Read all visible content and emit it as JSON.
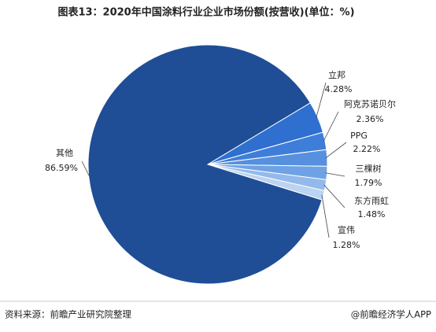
{
  "chart_data": {
    "type": "pie",
    "title": "图表13：2020年中国涂料行业企业市场份额(按营收)(单位：%)",
    "categories": [
      "立邦",
      "阿克苏诺贝尔",
      "PPG",
      "三棵树",
      "东方雨虹",
      "宣伟",
      "其他"
    ],
    "values": [
      4.28,
      2.36,
      2.22,
      1.79,
      1.48,
      1.28,
      86.59
    ],
    "value_labels": [
      "4.28%",
      "2.36%",
      "2.22%",
      "1.79%",
      "1.48%",
      "1.28%",
      "86.59%"
    ],
    "colors": [
      "#2e6fd0",
      "#3f7ed8",
      "#5690de",
      "#6fa2e4",
      "#93baeb",
      "#bcd3f2",
      "#1f4e96"
    ],
    "source": "资料来源：前瞻产业研究院整理",
    "credit": "@前瞻经济学人APP"
  }
}
